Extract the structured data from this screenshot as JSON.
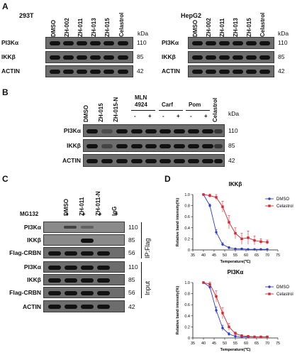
{
  "panels": {
    "A": {
      "label": "A",
      "left": {
        "cell_line": "293T",
        "lanes": [
          "DMSO",
          "ZH-002",
          "ZH-011",
          "ZH-013",
          "ZH-015",
          "Celastrol"
        ],
        "unit": "kDa",
        "rows": [
          {
            "name": "PI3Kα",
            "kda": "110"
          },
          {
            "name": "IKKβ",
            "kda": "85"
          },
          {
            "name": "ACTIN",
            "kda": "42"
          }
        ]
      },
      "right": {
        "cell_line": "HepG2",
        "lanes": [
          "DMSO",
          "ZH-002",
          "ZH-011",
          "ZH-013",
          "ZH-015",
          "Celastrol"
        ],
        "unit": "kDa",
        "rows": [
          {
            "name": "PI3Kα",
            "kda": "110"
          },
          {
            "name": "IKKβ",
            "kda": "85"
          },
          {
            "name": "ACTIN",
            "kda": "42"
          }
        ]
      }
    },
    "B": {
      "label": "B",
      "lanes": [
        "DMSO",
        "ZH-015",
        "ZH-015-N"
      ],
      "groups": [
        {
          "name_line1": "MLN",
          "name_line2": "4924",
          "signs": [
            "-",
            "+"
          ]
        },
        {
          "name_line1": "Carf",
          "name_line2": "",
          "signs": [
            "-",
            "+"
          ]
        },
        {
          "name_line1": "Pom",
          "name_line2": "",
          "signs": [
            "-",
            "+"
          ]
        }
      ],
      "last_lane": "Celastrol",
      "unit": "kDa",
      "rows": [
        {
          "name": "PI3Kα",
          "kda": "110"
        },
        {
          "name": "IKKβ",
          "kda": "85"
        },
        {
          "name": "ACTIN",
          "kda": "42"
        }
      ]
    },
    "C": {
      "label": "C",
      "lanes": [
        "DMSO",
        "ZH-011",
        "ZH-011-N",
        "IgG"
      ],
      "mg132_label": "MG132",
      "mg132_signs": [
        "+",
        "+",
        "+",
        "+"
      ],
      "ip_label": "IP:Flag",
      "input_label": "Input",
      "ip_rows": [
        {
          "name": "PI3Kα",
          "kda": "110"
        },
        {
          "name": "IKKβ",
          "kda": "85"
        },
        {
          "name": "Flag-CRBN",
          "kda": "56"
        }
      ],
      "input_rows": [
        {
          "name": "PI3Kα",
          "kda": "110"
        },
        {
          "name": "IKKβ",
          "kda": "85"
        },
        {
          "name": "Flag-CRBN",
          "kda": "56"
        },
        {
          "name": "ACTIN",
          "kda": "42"
        }
      ]
    },
    "D": {
      "label": "D"
    }
  },
  "colors": {
    "dmso": "#2d3ec9",
    "celastrol": "#d8252f"
  },
  "chart_data": [
    {
      "type": "line",
      "title": "IKKβ",
      "xlabel": "Temperature(℃)",
      "ylabel": "Relative band intensity(%)",
      "xlim": [
        35,
        75
      ],
      "ylim": [
        0,
        1.0
      ],
      "xticks": [
        35,
        40,
        45,
        50,
        55,
        60,
        65,
        70,
        75
      ],
      "yticks": [
        0,
        0.2,
        0.4,
        0.6,
        0.8,
        1.0
      ],
      "ytick_labels": [
        "0",
        "0.2",
        "0.4",
        "0.6",
        "0.8",
        "1.0"
      ],
      "legend": "top-right",
      "series": [
        {
          "name": "DMSO",
          "x": [
            40,
            43,
            46,
            49,
            52,
            55,
            58,
            61,
            64,
            67,
            70
          ],
          "y": [
            1.0,
            0.8,
            0.32,
            0.1,
            0.04,
            0.02,
            0.02,
            0.01,
            0.01,
            0.01,
            0.01
          ],
          "err": [
            0,
            0.03,
            0.05,
            0.03,
            0.02,
            0.01,
            0.01,
            0.01,
            0.01,
            0.01,
            0.01
          ]
        },
        {
          "name": "Celastrol",
          "x": [
            40,
            43,
            46,
            49,
            52,
            55,
            58,
            61,
            64,
            67,
            70
          ],
          "y": [
            1.0,
            0.98,
            0.95,
            0.78,
            0.5,
            0.3,
            0.2,
            0.22,
            0.17,
            0.15,
            0.14
          ],
          "err": [
            0,
            0.03,
            0.05,
            0.1,
            0.12,
            0.1,
            0.1,
            0.12,
            0.08,
            0.05,
            0.04
          ]
        }
      ]
    },
    {
      "type": "line",
      "title": "PI3Kα",
      "xlabel": "Temperature(℃)",
      "ylabel": "Relative band intensity(%)",
      "xlim": [
        35,
        75
      ],
      "ylim": [
        0,
        1.0
      ],
      "xticks": [
        35,
        40,
        45,
        50,
        55,
        60,
        65,
        70,
        75
      ],
      "yticks": [
        0,
        0.2,
        0.4,
        0.6,
        0.8,
        1.0
      ],
      "ytick_labels": [
        "0",
        "0.2",
        "0.4",
        "0.6",
        "0.8",
        "1.0"
      ],
      "legend": "top-right",
      "series": [
        {
          "name": "DMSO",
          "x": [
            40,
            43,
            46,
            49,
            52,
            55,
            58,
            61,
            64,
            67,
            70
          ],
          "y": [
            1.0,
            0.92,
            0.5,
            0.18,
            0.07,
            0.03,
            0.02,
            0.02,
            0.02,
            0.02,
            0.02
          ],
          "err": [
            0,
            0.04,
            0.06,
            0.05,
            0.03,
            0.01,
            0.01,
            0.01,
            0.01,
            0.01,
            0.01
          ]
        },
        {
          "name": "Celastrol",
          "x": [
            40,
            43,
            46,
            49,
            52,
            55,
            58,
            61,
            64,
            67,
            70
          ],
          "y": [
            1.0,
            0.97,
            0.75,
            0.45,
            0.2,
            0.08,
            0.04,
            0.03,
            0.02,
            0.02,
            0.02
          ],
          "err": [
            0,
            0.04,
            0.1,
            0.1,
            0.06,
            0.03,
            0.02,
            0.01,
            0.01,
            0.01,
            0.01
          ]
        }
      ]
    }
  ]
}
